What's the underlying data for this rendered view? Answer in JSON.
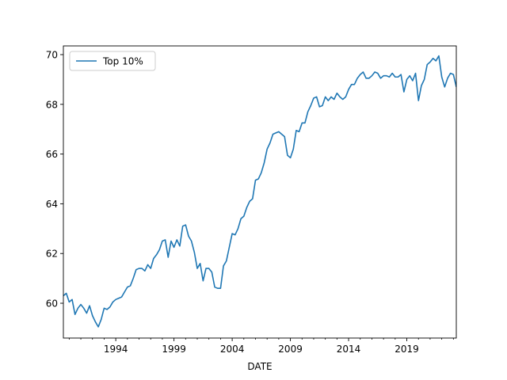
{
  "chart_data": {
    "type": "line",
    "title": "",
    "xlabel": "DATE",
    "ylabel": "",
    "x_tick_labels": [
      "1994",
      "1999",
      "2004",
      "2009",
      "2014",
      "2019"
    ],
    "x_tick_years": [
      1994,
      1999,
      2004,
      2009,
      2014,
      2019
    ],
    "y_ticks": [
      60,
      62,
      64,
      66,
      68,
      70
    ],
    "xlim": [
      1989.5,
      2023.25
    ],
    "ylim": [
      58.6,
      70.35
    ],
    "grid": false,
    "legend": {
      "position": "upper-left"
    },
    "colors": {
      "series": "#1f77b4"
    },
    "series": [
      {
        "name": "Top 10%",
        "x": [
          1989.5,
          1989.75,
          1990,
          1990.25,
          1990.5,
          1990.75,
          1991,
          1991.25,
          1991.5,
          1991.75,
          1992,
          1992.25,
          1992.5,
          1992.75,
          1993,
          1993.25,
          1993.5,
          1993.75,
          1994,
          1994.25,
          1994.5,
          1994.75,
          1995,
          1995.25,
          1995.5,
          1995.75,
          1996,
          1996.25,
          1996.5,
          1996.75,
          1997,
          1997.25,
          1997.5,
          1997.75,
          1998,
          1998.25,
          1998.5,
          1998.75,
          1999,
          1999.25,
          1999.5,
          1999.75,
          2000,
          2000.25,
          2000.5,
          2000.75,
          2001,
          2001.25,
          2001.5,
          2001.75,
          2002,
          2002.25,
          2002.5,
          2002.75,
          2003,
          2003.25,
          2003.5,
          2003.75,
          2004,
          2004.25,
          2004.5,
          2004.75,
          2005,
          2005.25,
          2005.5,
          2005.75,
          2006,
          2006.25,
          2006.5,
          2006.75,
          2007,
          2007.25,
          2007.5,
          2007.75,
          2008,
          2008.25,
          2008.5,
          2008.75,
          2009,
          2009.25,
          2009.5,
          2009.75,
          2010,
          2010.25,
          2010.5,
          2010.75,
          2011,
          2011.25,
          2011.5,
          2011.75,
          2012,
          2012.25,
          2012.5,
          2012.75,
          2013,
          2013.25,
          2013.5,
          2013.75,
          2014,
          2014.25,
          2014.5,
          2014.75,
          2015,
          2015.25,
          2015.5,
          2015.75,
          2016,
          2016.25,
          2016.5,
          2016.75,
          2017,
          2017.25,
          2017.5,
          2017.75,
          2018,
          2018.25,
          2018.5,
          2018.75,
          2019,
          2019.25,
          2019.5,
          2019.75,
          2020,
          2020.25,
          2020.5,
          2020.75,
          2021,
          2021.25,
          2021.5,
          2021.75,
          2022,
          2022.25,
          2022.5,
          2022.75,
          2023,
          2023.25
        ],
        "values": [
          60.3,
          60.4,
          60.05,
          60.15,
          59.55,
          59.8,
          59.95,
          59.8,
          59.6,
          59.9,
          59.5,
          59.25,
          59.05,
          59.35,
          59.8,
          59.75,
          59.85,
          60.05,
          60.15,
          60.2,
          60.25,
          60.45,
          60.65,
          60.7,
          61.0,
          61.35,
          61.4,
          61.4,
          61.3,
          61.55,
          61.4,
          61.8,
          61.95,
          62.15,
          62.5,
          62.55,
          61.85,
          62.5,
          62.25,
          62.55,
          62.3,
          63.1,
          63.15,
          62.7,
          62.5,
          62.05,
          61.4,
          61.6,
          60.9,
          61.4,
          61.4,
          61.25,
          60.65,
          60.6,
          60.6,
          61.5,
          61.7,
          62.25,
          62.8,
          62.75,
          63.0,
          63.4,
          63.5,
          63.85,
          64.1,
          64.2,
          64.95,
          65.0,
          65.25,
          65.65,
          66.2,
          66.45,
          66.8,
          66.85,
          66.9,
          66.8,
          66.7,
          65.95,
          65.85,
          66.2,
          66.95,
          66.9,
          67.25,
          67.25,
          67.7,
          67.95,
          68.25,
          68.3,
          67.9,
          67.95,
          68.3,
          68.15,
          68.3,
          68.2,
          68.45,
          68.3,
          68.2,
          68.3,
          68.6,
          68.8,
          68.8,
          69.05,
          69.2,
          69.3,
          69.05,
          69.05,
          69.15,
          69.3,
          69.25,
          69.05,
          69.15,
          69.15,
          69.1,
          69.25,
          69.1,
          69.1,
          69.2,
          68.5,
          69.0,
          69.15,
          68.95,
          69.25,
          68.15,
          68.75,
          69.0,
          69.6,
          69.7,
          69.85,
          69.75,
          69.95,
          69.1,
          68.7,
          69.05,
          69.25,
          69.2,
          68.7
        ]
      }
    ]
  }
}
